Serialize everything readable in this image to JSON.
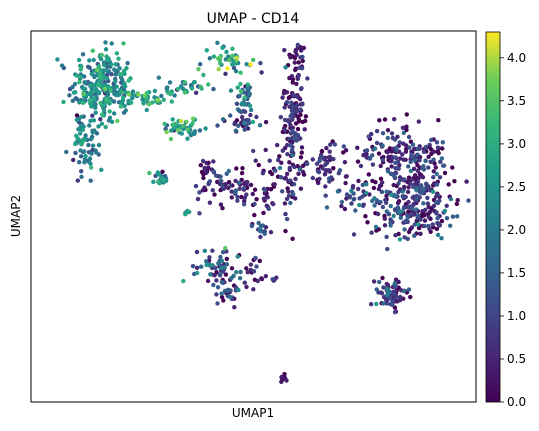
{
  "chart_data": {
    "type": "scatter",
    "title": "UMAP - CD14",
    "xlabel": "UMAP1",
    "ylabel": "UMAP2",
    "x_ticks_shown": false,
    "y_ticks_shown": false,
    "grid": false,
    "colormap": "viridis",
    "colorbar": {
      "min": 0.0,
      "max": 4.3,
      "ticks": [
        0.0,
        0.5,
        1.0,
        1.5,
        2.0,
        2.5,
        3.0,
        3.5,
        4.0
      ],
      "tick_labels": [
        "0.0",
        "0.5",
        "1.0",
        "1.5",
        "2.0",
        "2.5",
        "3.0",
        "3.5",
        "4.0"
      ]
    },
    "clusters": [
      {
        "cx": 0.16,
        "cy": 0.85,
        "sx": 0.035,
        "sy": 0.05,
        "n": 260,
        "mean": 2.2,
        "sd": 0.6
      },
      {
        "cx": 0.12,
        "cy": 0.69,
        "sx": 0.018,
        "sy": 0.04,
        "n": 70,
        "mean": 2.0,
        "sd": 0.6
      },
      {
        "cx": 0.26,
        "cy": 0.82,
        "sx": 0.03,
        "sy": 0.012,
        "n": 45,
        "mean": 2.6,
        "sd": 0.6
      },
      {
        "cx": 0.34,
        "cy": 0.85,
        "sx": 0.035,
        "sy": 0.008,
        "n": 30,
        "mean": 2.2,
        "sd": 0.8
      },
      {
        "cx": 0.34,
        "cy": 0.74,
        "sx": 0.018,
        "sy": 0.015,
        "n": 45,
        "mean": 2.6,
        "sd": 0.6
      },
      {
        "cx": 0.29,
        "cy": 0.6,
        "sx": 0.01,
        "sy": 0.015,
        "n": 22,
        "mean": 1.9,
        "sd": 0.8
      },
      {
        "cx": 0.35,
        "cy": 0.51,
        "sx": 0.005,
        "sy": 0.005,
        "n": 5,
        "mean": 2.6,
        "sd": 0.6
      },
      {
        "cx": 0.45,
        "cy": 0.92,
        "sx": 0.03,
        "sy": 0.02,
        "n": 45,
        "mean": 2.6,
        "sd": 0.9
      },
      {
        "cx": 0.48,
        "cy": 0.8,
        "sx": 0.012,
        "sy": 0.04,
        "n": 40,
        "mean": 1.4,
        "sd": 0.8
      },
      {
        "cx": 0.48,
        "cy": 0.75,
        "sx": 0.03,
        "sy": 0.01,
        "n": 25,
        "mean": 0.9,
        "sd": 0.7
      },
      {
        "cx": 0.59,
        "cy": 0.77,
        "sx": 0.015,
        "sy": 0.08,
        "n": 130,
        "mean": 0.4,
        "sd": 0.5
      },
      {
        "cx": 0.6,
        "cy": 0.93,
        "sx": 0.008,
        "sy": 0.025,
        "n": 18,
        "mean": 0.4,
        "sd": 0.4
      },
      {
        "cx": 0.45,
        "cy": 0.58,
        "sx": 0.035,
        "sy": 0.03,
        "n": 70,
        "mean": 0.6,
        "sd": 0.6
      },
      {
        "cx": 0.39,
        "cy": 0.63,
        "sx": 0.01,
        "sy": 0.012,
        "n": 14,
        "mean": 0.4,
        "sd": 0.5
      },
      {
        "cx": 0.53,
        "cy": 0.58,
        "sx": 0.015,
        "sy": 0.06,
        "n": 40,
        "mean": 0.5,
        "sd": 0.5
      },
      {
        "cx": 0.58,
        "cy": 0.6,
        "sx": 0.01,
        "sy": 0.06,
        "n": 30,
        "mean": 0.4,
        "sd": 0.5
      },
      {
        "cx": 0.52,
        "cy": 0.46,
        "sx": 0.008,
        "sy": 0.01,
        "n": 10,
        "mean": 1.5,
        "sd": 0.6
      },
      {
        "cx": 0.5,
        "cy": 0.38,
        "sx": 0.01,
        "sy": 0.05,
        "n": 18,
        "mean": 0.4,
        "sd": 0.4
      },
      {
        "cx": 0.54,
        "cy": 0.33,
        "sx": 0.01,
        "sy": 0.005,
        "n": 8,
        "mean": 0.3,
        "sd": 0.3
      },
      {
        "cx": 0.66,
        "cy": 0.64,
        "sx": 0.03,
        "sy": 0.03,
        "n": 60,
        "mean": 0.5,
        "sd": 0.5
      },
      {
        "cx": 0.73,
        "cy": 0.56,
        "sx": 0.03,
        "sy": 0.02,
        "n": 40,
        "mean": 1.2,
        "sd": 0.8
      },
      {
        "cx": 0.84,
        "cy": 0.66,
        "sx": 0.05,
        "sy": 0.04,
        "n": 190,
        "mean": 0.5,
        "sd": 0.6
      },
      {
        "cx": 0.86,
        "cy": 0.53,
        "sx": 0.05,
        "sy": 0.045,
        "n": 230,
        "mean": 0.6,
        "sd": 0.7
      },
      {
        "cx": 0.42,
        "cy": 0.36,
        "sx": 0.03,
        "sy": 0.03,
        "n": 70,
        "mean": 1.2,
        "sd": 0.9
      },
      {
        "cx": 0.45,
        "cy": 0.29,
        "sx": 0.015,
        "sy": 0.015,
        "n": 20,
        "mean": 0.8,
        "sd": 0.7
      },
      {
        "cx": 0.81,
        "cy": 0.29,
        "sx": 0.018,
        "sy": 0.022,
        "n": 80,
        "mean": 0.5,
        "sd": 0.6
      },
      {
        "cx": 0.57,
        "cy": 0.06,
        "sx": 0.004,
        "sy": 0.006,
        "n": 8,
        "mean": 0.2,
        "sd": 0.2
      }
    ]
  }
}
